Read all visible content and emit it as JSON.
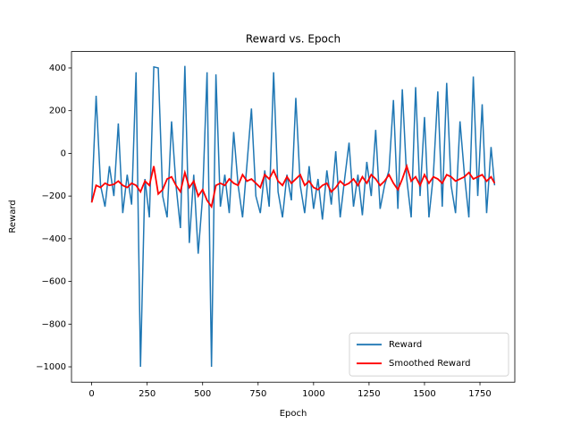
{
  "chart_data": {
    "type": "line",
    "title": "Reward vs. Epoch",
    "x_label": "Epoch",
    "y_label": "Reward",
    "x": [
      0,
      20,
      40,
      60,
      80,
      100,
      120,
      140,
      160,
      180,
      200,
      220,
      240,
      260,
      280,
      300,
      320,
      340,
      360,
      380,
      400,
      420,
      440,
      460,
      480,
      500,
      520,
      540,
      560,
      580,
      600,
      620,
      640,
      660,
      680,
      700,
      720,
      740,
      760,
      780,
      800,
      820,
      840,
      860,
      880,
      900,
      920,
      940,
      960,
      980,
      1000,
      1020,
      1040,
      1060,
      1080,
      1100,
      1120,
      1140,
      1160,
      1180,
      1200,
      1220,
      1240,
      1260,
      1280,
      1300,
      1320,
      1340,
      1360,
      1380,
      1400,
      1420,
      1440,
      1460,
      1480,
      1500,
      1520,
      1540,
      1560,
      1580,
      1600,
      1620,
      1640,
      1660,
      1680,
      1700,
      1720,
      1740,
      1760,
      1780,
      1800,
      1816
    ],
    "series": [
      {
        "name": "Reward",
        "color": "#1f77b4",
        "values": [
          -230,
          270,
          -150,
          -250,
          -60,
          -200,
          140,
          -280,
          -100,
          -240,
          380,
          -1000,
          -120,
          -300,
          405,
          400,
          -200,
          -300,
          150,
          -150,
          -350,
          410,
          -420,
          -100,
          -470,
          -200,
          380,
          -1000,
          370,
          -250,
          -100,
          -280,
          100,
          -150,
          -300,
          -50,
          210,
          -200,
          -280,
          -80,
          -250,
          380,
          -180,
          -300,
          -100,
          -220,
          260,
          -150,
          -280,
          -60,
          -260,
          -120,
          -310,
          -80,
          -240,
          10,
          -300,
          -120,
          50,
          -250,
          -100,
          -290,
          -40,
          -200,
          110,
          -260,
          -150,
          -80,
          250,
          -260,
          300,
          -120,
          -300,
          310,
          -200,
          170,
          -300,
          -100,
          290,
          -250,
          330,
          -150,
          -280,
          150,
          -100,
          -300,
          360,
          -200,
          230,
          -280,
          30,
          -150
        ]
      },
      {
        "name": "Smoothed Reward",
        "color": "#ff0000",
        "values": [
          -230,
          -150,
          -160,
          -140,
          -150,
          -145,
          -130,
          -150,
          -160,
          -140,
          -150,
          -180,
          -130,
          -150,
          -60,
          -190,
          -170,
          -120,
          -110,
          -150,
          -180,
          -90,
          -160,
          -130,
          -200,
          -170,
          -220,
          -250,
          -150,
          -140,
          -150,
          -120,
          -140,
          -150,
          -100,
          -130,
          -120,
          -140,
          -160,
          -100,
          -120,
          -80,
          -130,
          -150,
          -110,
          -140,
          -120,
          -100,
          -150,
          -130,
          -160,
          -170,
          -150,
          -140,
          -180,
          -160,
          -130,
          -150,
          -140,
          -120,
          -150,
          -110,
          -140,
          -100,
          -120,
          -150,
          -130,
          -100,
          -140,
          -170,
          -120,
          -60,
          -130,
          -110,
          -150,
          -100,
          -140,
          -110,
          -120,
          -140,
          -100,
          -110,
          -130,
          -120,
          -110,
          -90,
          -120,
          -110,
          -100,
          -130,
          -110,
          -140
        ]
      }
    ],
    "xlim": [
      -91,
      1907
    ],
    "ylim": [
      -1072,
      477
    ],
    "xticks": [
      0,
      250,
      500,
      750,
      1000,
      1250,
      1500,
      1750
    ],
    "yticks": [
      {
        "value": -1000,
        "label": "−1000"
      },
      {
        "value": -800,
        "label": "−800"
      },
      {
        "value": -600,
        "label": "−600"
      },
      {
        "value": -400,
        "label": "−400"
      },
      {
        "value": -200,
        "label": "−200"
      },
      0,
      200,
      400
    ],
    "legend": "lower right"
  }
}
